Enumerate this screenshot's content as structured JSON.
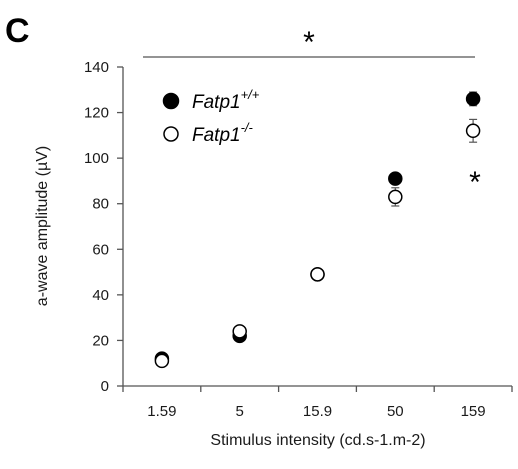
{
  "panel_label": "C",
  "significance": {
    "overall": "*",
    "point": "*"
  },
  "chart_data": {
    "type": "scatter",
    "xlabel": "Stimulus intensity (cd.s-1.m-2)",
    "ylabel": "a-wave amplitude (µV)",
    "categories": [
      "1.59",
      "5",
      "15.9",
      "50",
      "159"
    ],
    "ylim": [
      0,
      140
    ],
    "yticks": [
      0,
      20,
      40,
      60,
      80,
      100,
      120,
      140
    ],
    "grid": false,
    "legend_position": "top-left",
    "series": [
      {
        "name": "Fatp1",
        "name_sup": "+/+",
        "marker": "filled-circle",
        "color": "#000000",
        "values": [
          12,
          22,
          49,
          91,
          126
        ],
        "errors": [
          1,
          1,
          1,
          2,
          3
        ]
      },
      {
        "name": "Fatp1",
        "name_sup": "-/-",
        "marker": "open-circle",
        "color": "#000000",
        "values": [
          11,
          24,
          49,
          83,
          112
        ],
        "errors": [
          1,
          1,
          1,
          4,
          5
        ]
      }
    ]
  }
}
